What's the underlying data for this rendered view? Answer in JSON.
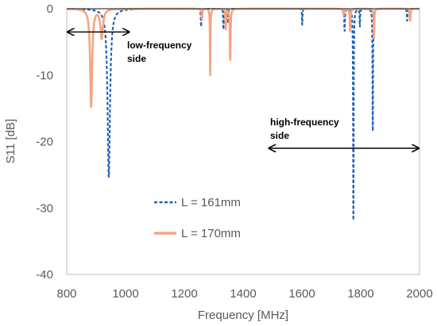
{
  "chart_data": {
    "type": "line",
    "xlabel": "Frequency  [MHz]",
    "ylabel": "S11 [dB]",
    "xlim": [
      800,
      2000
    ],
    "ylim": [
      -40,
      0
    ],
    "x_ticks": [
      "800",
      "1000",
      "1200",
      "1400",
      "1600",
      "1800",
      "2000"
    ],
    "y_ticks": [
      "0",
      "-10",
      "-20",
      "-30",
      "-40"
    ],
    "grid": "none",
    "legend_position": "lower-left",
    "series": [
      {
        "name": "L = 161mm",
        "color": "#1f63b5",
        "style": "dashed",
        "dips": [
          {
            "f": 943,
            "depth": -25.3,
            "width": 10
          },
          {
            "f": 1257,
            "depth": -2.7,
            "width": 2.5
          },
          {
            "f": 1333,
            "depth": -3.1,
            "width": 2
          },
          {
            "f": 1349,
            "depth": -2.2,
            "width": 2
          },
          {
            "f": 1601,
            "depth": -2.4,
            "width": 2
          },
          {
            "f": 1745,
            "depth": -3.3,
            "width": 2.5
          },
          {
            "f": 1775,
            "depth": -31.8,
            "width": 2
          },
          {
            "f": 1797,
            "depth": -2.6,
            "width": 2
          },
          {
            "f": 1841,
            "depth": -18.4,
            "width": 2
          },
          {
            "f": 1958,
            "depth": -1.8,
            "width": 2.5
          }
        ]
      },
      {
        "name": "L = 170mm",
        "color": "#f4a582",
        "style": "solid",
        "dips": [
          {
            "f": 883,
            "depth": -14.7,
            "width": 8
          },
          {
            "f": 919,
            "depth": -4.4,
            "width": 10
          },
          {
            "f": 1260,
            "depth": -1.6,
            "width": 2.5
          },
          {
            "f": 1288,
            "depth": -10.0,
            "width": 2
          },
          {
            "f": 1341,
            "depth": -3.0,
            "width": 2.5
          },
          {
            "f": 1356,
            "depth": -7.7,
            "width": 3
          },
          {
            "f": 1742,
            "depth": -1.0,
            "width": 4
          },
          {
            "f": 1764,
            "depth": -3.4,
            "width": 3
          },
          {
            "f": 1845,
            "depth": -4.4,
            "width": 2.5
          },
          {
            "f": 1968,
            "depth": -1.8,
            "width": 3
          }
        ]
      }
    ],
    "annotations": [
      {
        "label_lines": [
          "low-frequency",
          "side"
        ],
        "range": [
          800,
          1015
        ],
        "y": -3.5
      },
      {
        "label_lines": [
          "high-frequency",
          "side"
        ],
        "range": [
          1485,
          2000
        ],
        "y": -21.0
      }
    ]
  }
}
